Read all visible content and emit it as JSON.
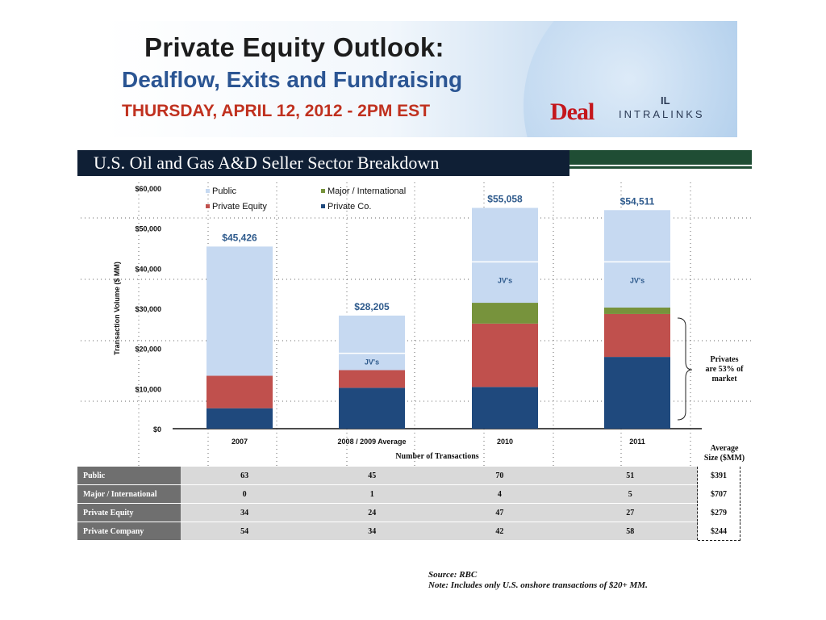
{
  "banner": {
    "title": "Private Equity Outlook:",
    "subtitle": "Dealflow, Exits and Fundraising",
    "date": "THURSDAY, APRIL 12, 2012 - 2PM EST",
    "logo_deal": "Deal",
    "logo_intralinks": "INTRALINKS"
  },
  "chart_title": "U.S. Oil and Gas A&D Seller Sector Breakdown",
  "chart_data": {
    "type": "bar",
    "stacked": true,
    "categories": [
      "2007",
      "2008 / 2009 Average",
      "2010",
      "2011"
    ],
    "series": [
      {
        "name": "Private Co.",
        "color": "#1f497d",
        "values": [
          5100,
          10200,
          10400,
          17900
        ]
      },
      {
        "name": "Private Equity",
        "color": "#c0504d",
        "values": [
          8100,
          4400,
          15800,
          10700
        ]
      },
      {
        "name": "Major / International",
        "color": "#77933c",
        "values": [
          0,
          0,
          5200,
          1600
        ]
      },
      {
        "name": "Public",
        "color": "#c6d9f1",
        "values": [
          32226,
          13605,
          23658,
          24311
        ]
      }
    ],
    "totals": [
      "$45,426",
      "$28,205",
      "$55,058",
      "$54,511"
    ],
    "jv_label": "JV's",
    "jv_values": [
      null,
      18800,
      41600,
      41600
    ],
    "ylabel": "Transaction Volume ($ MM)",
    "yticks": [
      "$0",
      "$10,000",
      "$20,000",
      "$30,000",
      "$40,000",
      "$50,000",
      "$60,000"
    ],
    "ylim": [
      0,
      60000
    ],
    "xlabel": "Number of Transactions",
    "legend_position": "top",
    "annotation": [
      "Privates",
      "are 53% of",
      "market"
    ]
  },
  "table": {
    "avg_header": [
      "Average",
      "Size ($MM)"
    ],
    "rows": [
      {
        "label": "Public",
        "values": [
          "63",
          "45",
          "70",
          "51"
        ],
        "avg": "$391"
      },
      {
        "label": "Major / International",
        "values": [
          "0",
          "1",
          "4",
          "5"
        ],
        "avg": "$707"
      },
      {
        "label": "Private Equity",
        "values": [
          "34",
          "24",
          "47",
          "27"
        ],
        "avg": "$279"
      },
      {
        "label": "Private Company",
        "values": [
          "54",
          "34",
          "42",
          "58"
        ],
        "avg": "$244"
      }
    ]
  },
  "source": "Source: RBC",
  "note": "Note: Includes only U.S. onshore transactions of $20+ MM."
}
